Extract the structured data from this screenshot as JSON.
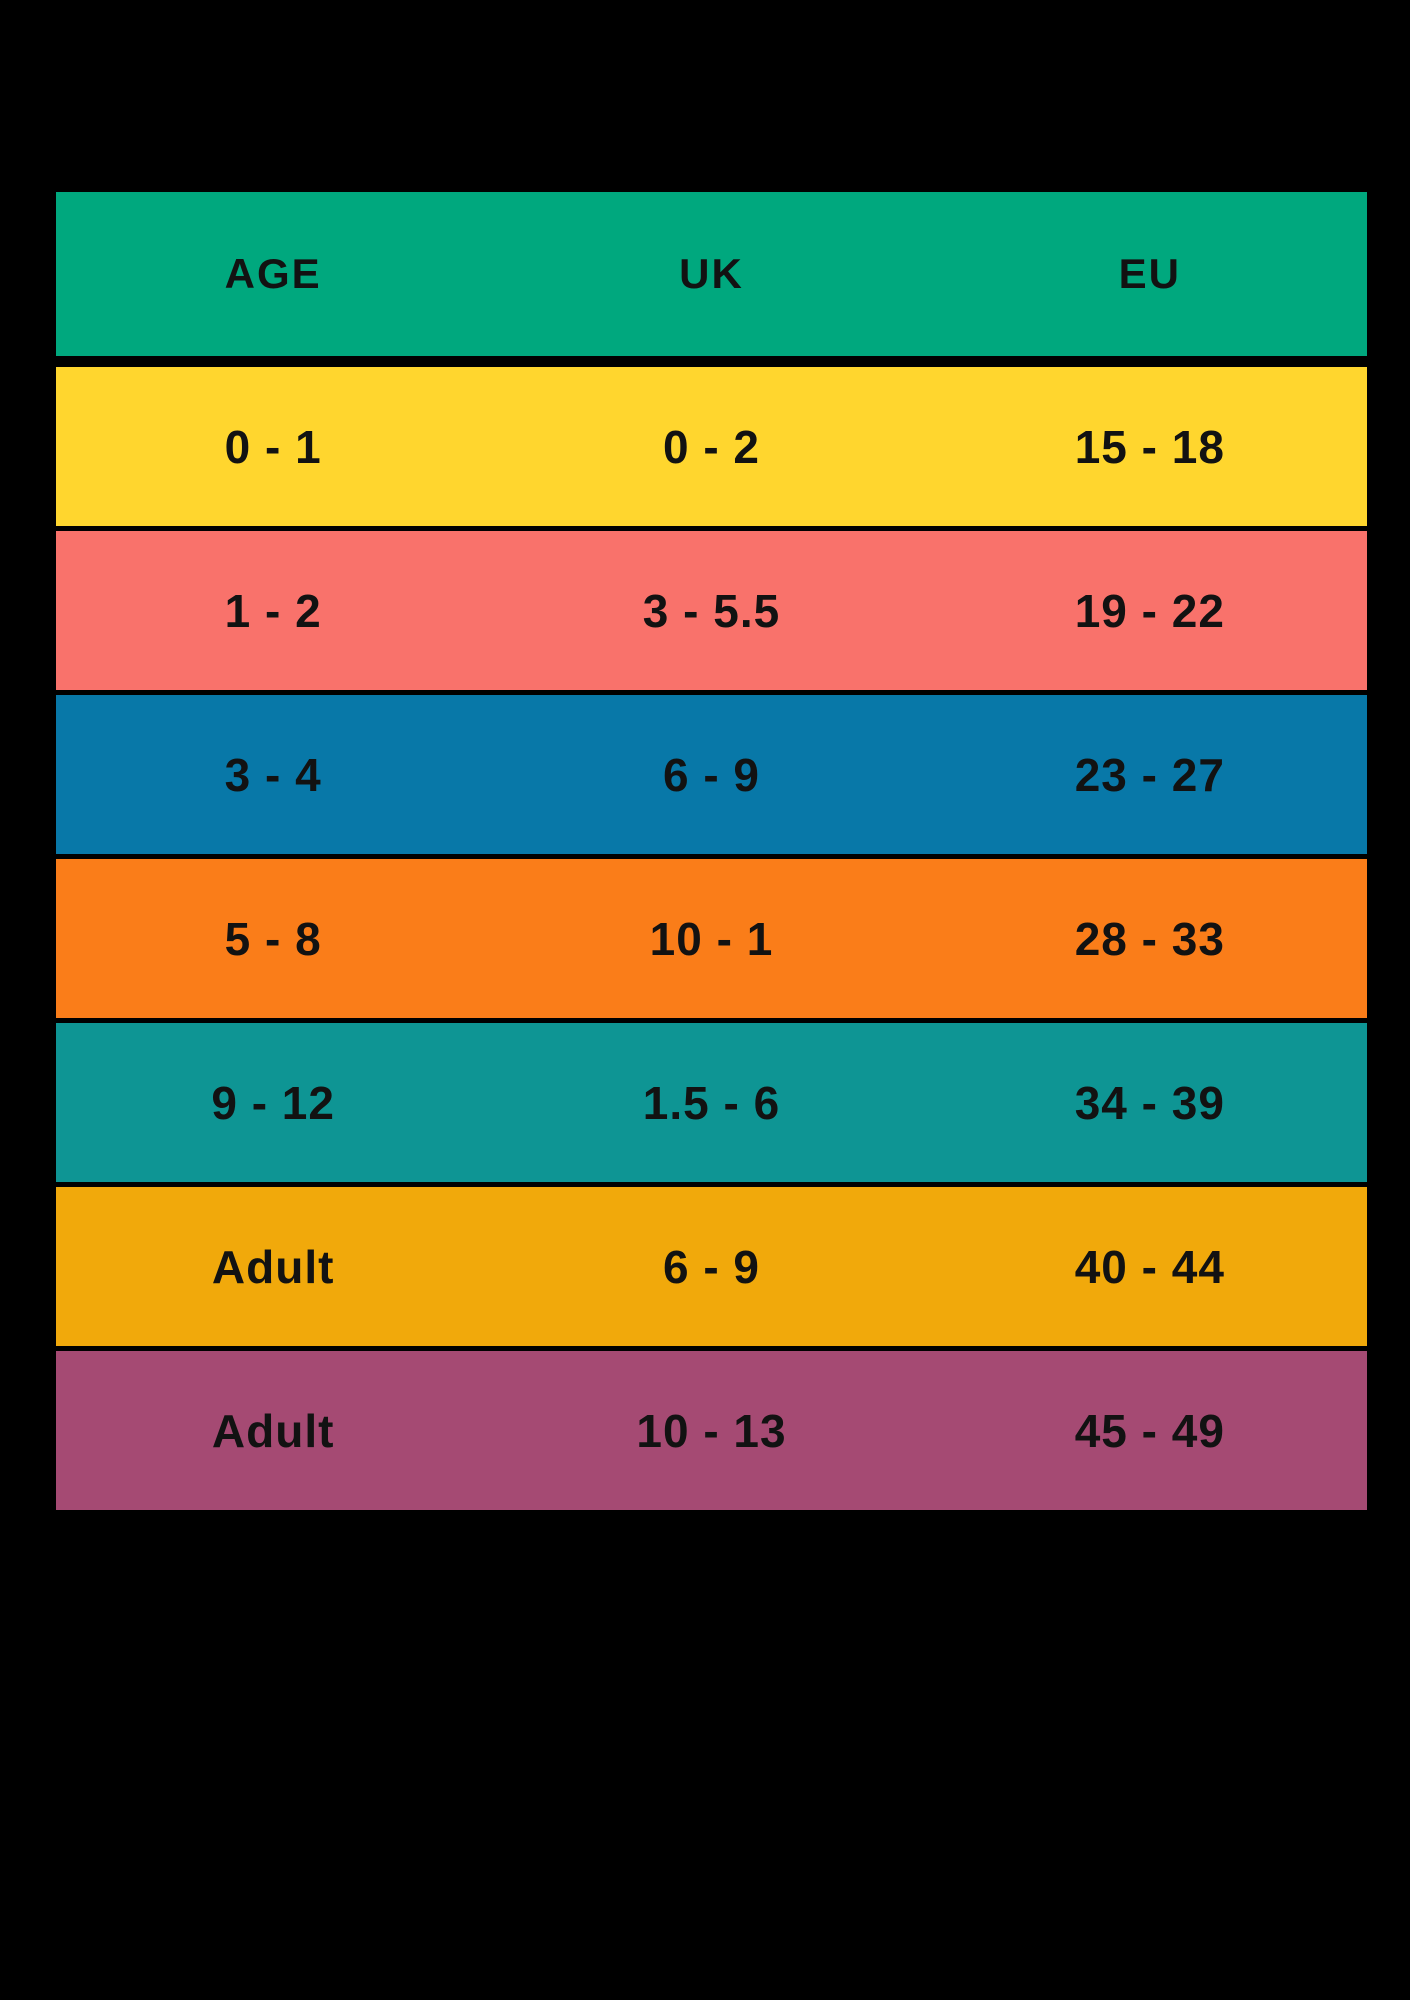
{
  "table": {
    "header_color": "#00A87E",
    "background_color": "#000000",
    "text_color": "#121212",
    "headers": [
      "AGE",
      "UK",
      "EU"
    ],
    "rows": [
      {
        "age": "0 - 1",
        "uk": "0 - 2",
        "eu": "15 - 18",
        "color": "#FFD62E"
      },
      {
        "age": "1 - 2",
        "uk": "3 - 5.5",
        "eu": "19 - 22",
        "color": "#F9726B"
      },
      {
        "age": "3 - 4",
        "uk": "6 - 9",
        "eu": "23 - 27",
        "color": "#0878A8"
      },
      {
        "age": "5 - 8",
        "uk": "10 - 1",
        "eu": "28 - 33",
        "color": "#FA7D19"
      },
      {
        "age": "9 - 12",
        "uk": "1.5 - 6",
        "eu": "34 - 39",
        "color": "#0E9594"
      },
      {
        "age": "Adult",
        "uk": "6 - 9",
        "eu": "40 - 44",
        "color": "#F1A90B"
      },
      {
        "age": "Adult",
        "uk": "10 - 13",
        "eu": "45 - 49",
        "color": "#A54A73"
      }
    ]
  },
  "chart_data": {
    "type": "table",
    "title": "",
    "columns": [
      "AGE",
      "UK",
      "EU"
    ],
    "cells": [
      [
        "0 - 1",
        "0 - 2",
        "15 - 18"
      ],
      [
        "1 - 2",
        "3 - 5.5",
        "19 - 22"
      ],
      [
        "3 - 4",
        "6 - 9",
        "23 - 27"
      ],
      [
        "5 - 8",
        "10 - 1",
        "28 - 33"
      ],
      [
        "9 - 12",
        "1.5 - 6",
        "34 - 39"
      ],
      [
        "Adult",
        "6 - 9",
        "40 - 44"
      ],
      [
        "Adult",
        "10 - 13",
        "45 - 49"
      ]
    ],
    "row_colors": [
      "#FFD62E",
      "#F9726B",
      "#0878A8",
      "#FA7D19",
      "#0E9594",
      "#F1A90B",
      "#A54A73"
    ],
    "header_color": "#00A87E",
    "layout": "grid with black separators on black background"
  }
}
